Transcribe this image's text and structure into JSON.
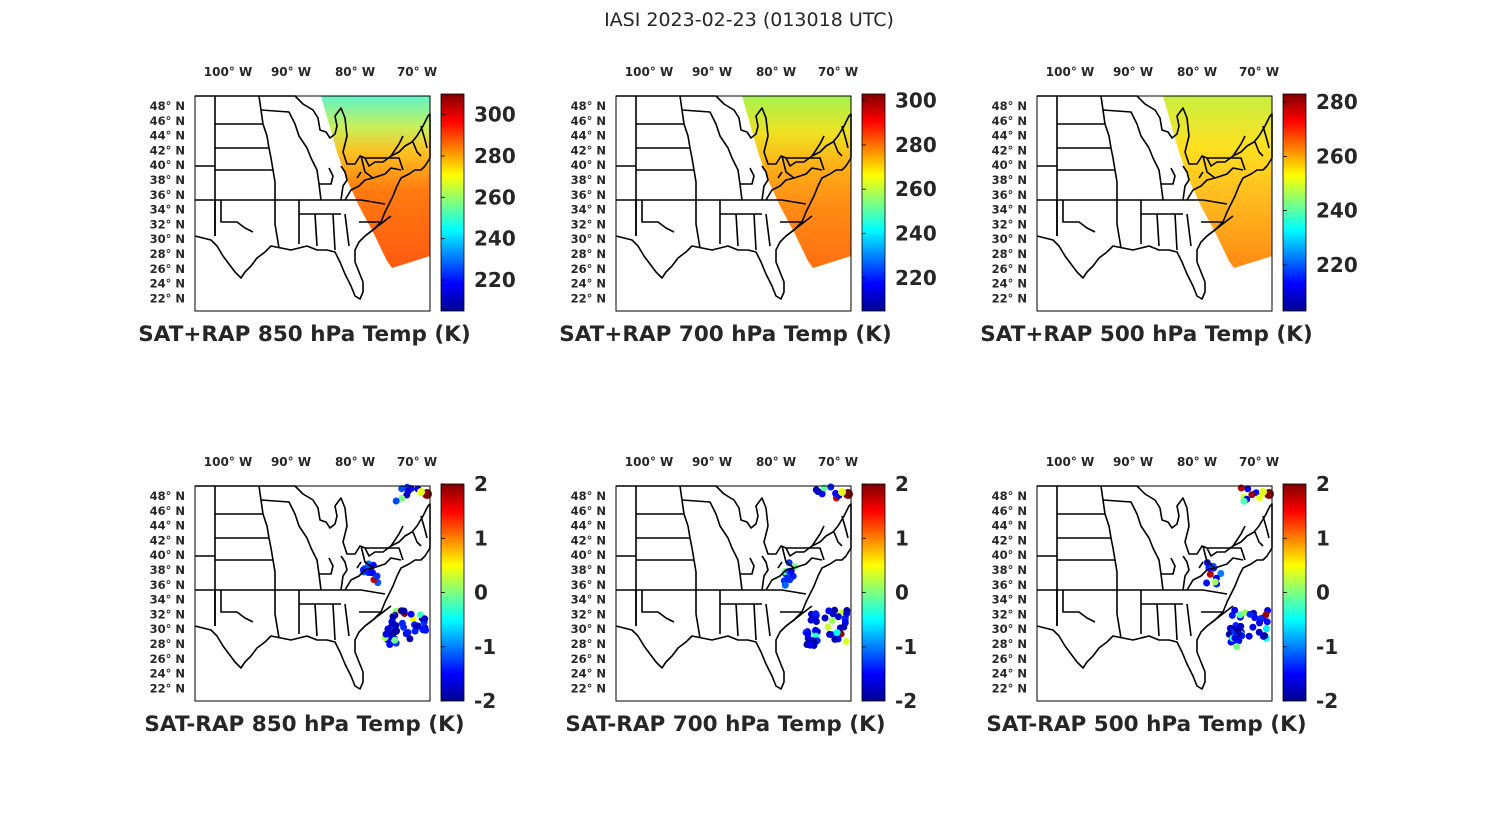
{
  "figure": {
    "title": "IASI 2023-02-23 (013018 UTC)"
  },
  "lon_labels": [
    "100",
    "90",
    "80",
    "70"
  ],
  "lon_hemisphere": "W",
  "lat_labels": [
    "48",
    "46",
    "44",
    "42",
    "40",
    "38",
    "36",
    "34",
    "32",
    "30",
    "28",
    "26",
    "24",
    "22"
  ],
  "lat_hemisphere": "N",
  "colors": {
    "frame": "#000000",
    "text": "#262626",
    "background": "#ffffff"
  },
  "colormap": "jet",
  "panels": [
    {
      "id": "sat850",
      "title": "SAT+RAP 850 hPa Temp (K)",
      "kind": "sum",
      "cb_min": 205,
      "cb_max": 310,
      "cb_ticks": [
        "300",
        "280",
        "260",
        "240",
        "220"
      ]
    },
    {
      "id": "sat700",
      "title": "SAT+RAP 700 hPa Temp (K)",
      "kind": "sum",
      "cb_min": 205,
      "cb_max": 303,
      "cb_ticks": [
        "300",
        "280",
        "260",
        "240",
        "220"
      ]
    },
    {
      "id": "sat500",
      "title": "SAT+RAP 500 hPa Temp (K)",
      "kind": "sum",
      "cb_min": 203,
      "cb_max": 283,
      "cb_ticks": [
        "280",
        "260",
        "240",
        "220"
      ]
    },
    {
      "id": "dif850",
      "title": "SAT-RAP 850 hPa Temp (K)",
      "kind": "diff",
      "cb_min": -2,
      "cb_max": 2,
      "cb_ticks": [
        "2",
        "1",
        "0",
        "-1",
        "-2"
      ]
    },
    {
      "id": "dif700",
      "title": "SAT-RAP 700 hPa Temp (K)",
      "kind": "diff",
      "cb_min": -2,
      "cb_max": 2,
      "cb_ticks": [
        "2",
        "1",
        "0",
        "-1",
        "-2"
      ]
    },
    {
      "id": "dif500",
      "title": "SAT-RAP 500 hPa Temp (K)",
      "kind": "diff",
      "cb_min": -2,
      "cb_max": 2,
      "cb_ticks": [
        "2",
        "1",
        "0",
        "-1",
        "-2"
      ]
    }
  ]
}
